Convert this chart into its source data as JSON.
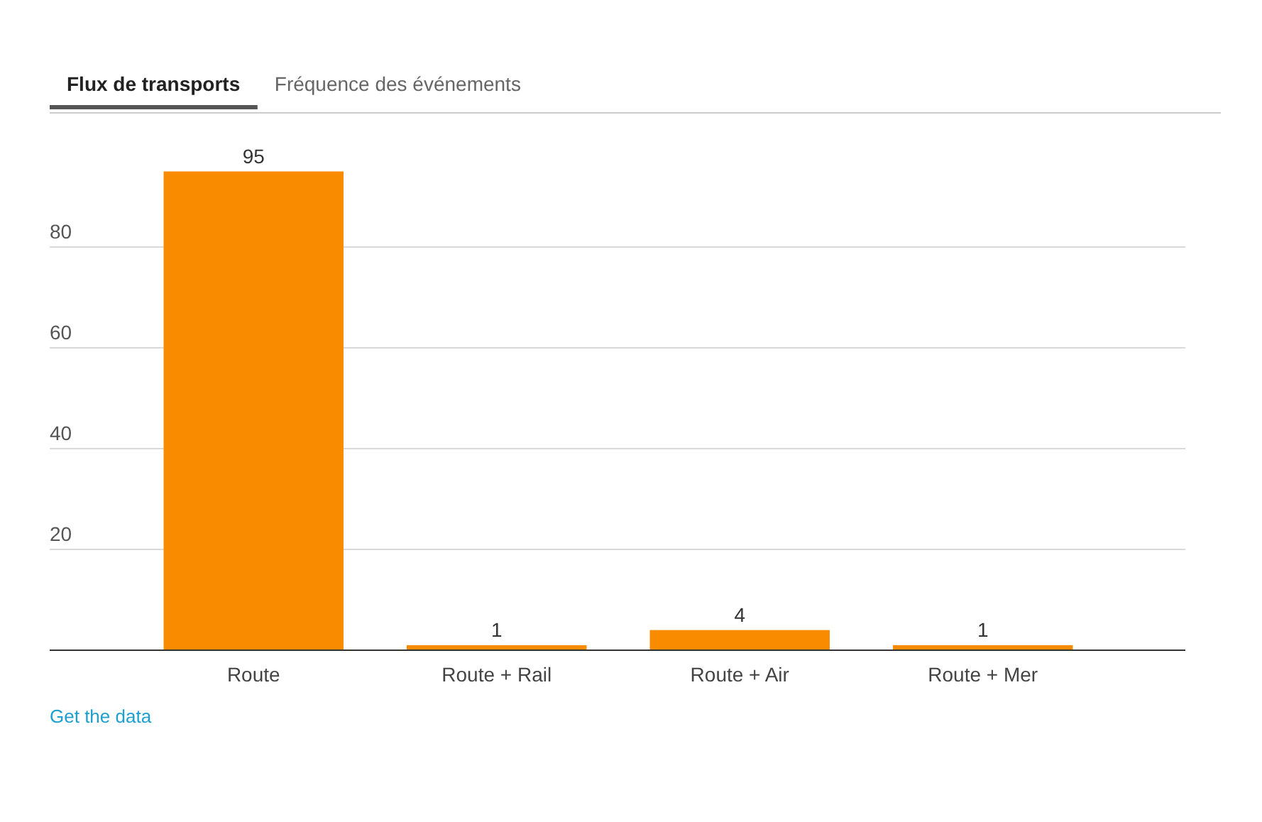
{
  "chart_data": {
    "type": "bar",
    "title": "Flux de transports",
    "categories": [
      "Route",
      "Route + Rail",
      "Route + Air",
      "Route + Mer"
    ],
    "values": [
      95,
      1,
      4,
      1
    ],
    "color": "#f98b00",
    "ylim": [
      0,
      95
    ],
    "yticks": [
      20,
      40,
      60,
      80
    ],
    "grid": "y",
    "data_labels": true,
    "annotations": [
      "Fréquence des événements",
      "Get the data"
    ]
  }
}
